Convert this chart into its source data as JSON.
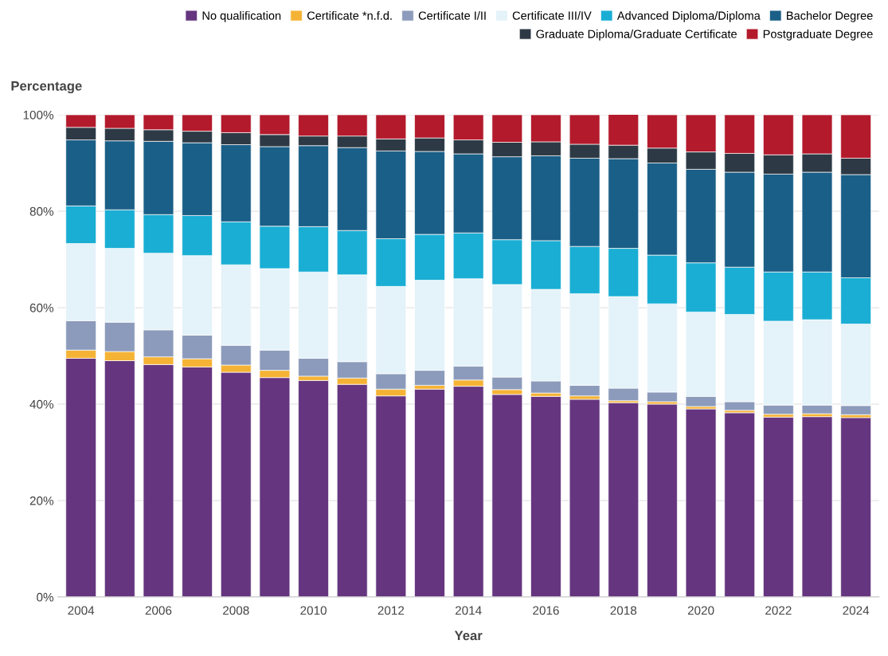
{
  "chart_data": {
    "type": "bar",
    "stacked": true,
    "xlabel": "Year",
    "ylabel": "Percentage",
    "categories": [
      "2004",
      null,
      "2006",
      null,
      "2008",
      null,
      "2010",
      null,
      "2012",
      null,
      "2014",
      null,
      "2016",
      null,
      "2018",
      null,
      "2020",
      null,
      "2022",
      null,
      "2024"
    ],
    "series": [
      {
        "name": "No qualification",
        "color": "#65357f",
        "values": [
          49.5,
          49.0,
          48.2,
          47.7,
          46.6,
          45.5,
          44.9,
          44.1,
          41.7,
          43.1,
          43.7,
          42.0,
          41.6,
          41.0,
          40.3,
          40.0,
          39.0,
          38.2,
          37.3,
          37.4,
          37.2
        ]
      },
      {
        "name": "Certificate *n.f.d.",
        "color": "#f5b335",
        "values": [
          1.7,
          1.9,
          1.6,
          1.7,
          1.5,
          1.5,
          0.9,
          1.3,
          1.4,
          0.8,
          1.3,
          1.0,
          0.7,
          0.7,
          0.4,
          0.5,
          0.5,
          0.5,
          0.6,
          0.6,
          0.6
        ]
      },
      {
        "name": "Certificate I/II",
        "color": "#8c9bbb",
        "values": [
          6.1,
          6.1,
          5.6,
          4.9,
          4.1,
          4.2,
          3.7,
          3.4,
          3.2,
          3.1,
          2.9,
          2.6,
          2.5,
          2.2,
          2.6,
          2.0,
          2.1,
          1.8,
          1.9,
          1.8,
          1.9
        ]
      },
      {
        "name": "Certificate III/IV",
        "color": "#e4f2f9",
        "values": [
          16.0,
          15.3,
          15.9,
          16.5,
          16.7,
          16.9,
          17.9,
          18.0,
          18.1,
          18.7,
          18.1,
          19.2,
          19.0,
          19.0,
          19.0,
          18.3,
          17.5,
          18.1,
          17.4,
          17.7,
          16.9
        ]
      },
      {
        "name": "Advanced Diploma/Diploma",
        "color": "#1aaed4",
        "values": [
          7.8,
          8.0,
          8.0,
          8.3,
          8.9,
          8.8,
          9.4,
          9.2,
          9.9,
          9.5,
          9.5,
          9.3,
          10.1,
          9.8,
          10.0,
          10.1,
          10.2,
          9.8,
          10.2,
          9.9,
          9.6
        ]
      },
      {
        "name": "Bachelor Degree",
        "color": "#1a5f87",
        "values": [
          13.7,
          14.3,
          15.2,
          15.1,
          16.0,
          16.5,
          16.8,
          17.2,
          18.2,
          17.2,
          16.4,
          17.2,
          17.6,
          18.3,
          18.6,
          19.1,
          19.4,
          19.7,
          20.3,
          20.7,
          21.4
        ]
      },
      {
        "name": "Graduate Diploma/Graduate Certificate",
        "color": "#2d3a45",
        "values": [
          2.6,
          2.6,
          2.4,
          2.4,
          2.5,
          2.5,
          2.0,
          2.4,
          2.5,
          2.8,
          2.9,
          3.0,
          2.9,
          2.9,
          2.8,
          3.1,
          3.6,
          3.9,
          4.0,
          3.8,
          3.4
        ]
      },
      {
        "name": "Postgraduate Degree",
        "color": "#b31a2c",
        "values": [
          2.6,
          2.8,
          3.1,
          3.4,
          3.7,
          4.1,
          4.4,
          4.4,
          5.0,
          4.8,
          5.2,
          5.7,
          5.6,
          6.1,
          6.4,
          6.9,
          7.7,
          8.0,
          8.3,
          8.1,
          9.0
        ]
      }
    ],
    "ylim": [
      0,
      100
    ],
    "yticks": [
      {
        "value": 0,
        "label": "0%"
      },
      {
        "value": 20,
        "label": "20%"
      },
      {
        "value": 40,
        "label": "40%"
      },
      {
        "value": 60,
        "label": "60%"
      },
      {
        "value": 80,
        "label": "80%"
      },
      {
        "value": 100,
        "label": "100%"
      }
    ],
    "grid": "y",
    "legend": "top right"
  }
}
